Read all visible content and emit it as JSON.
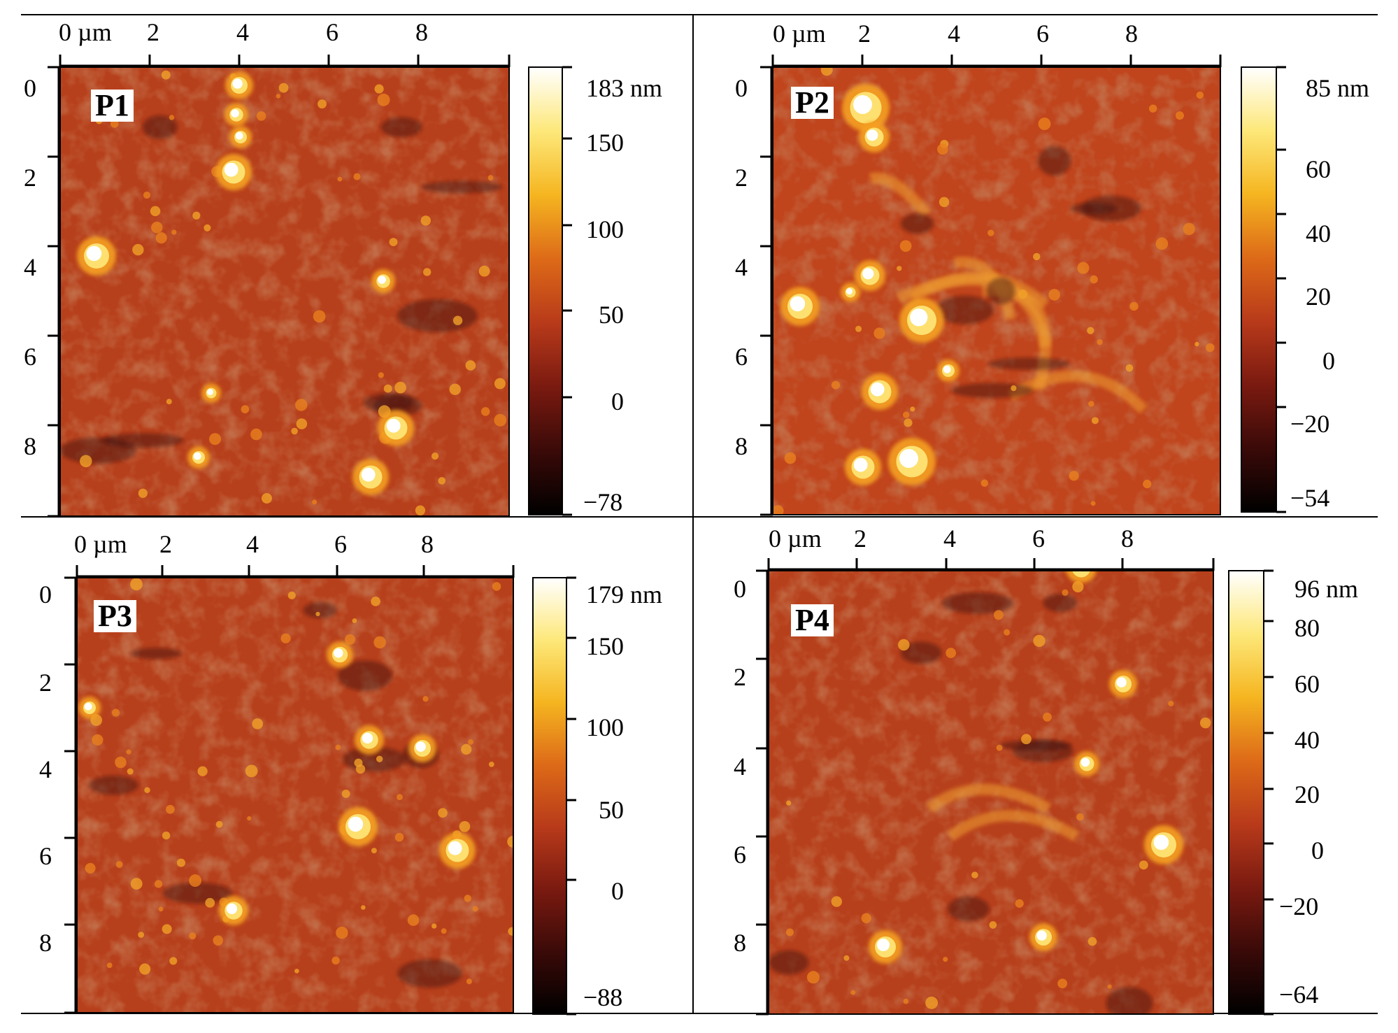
{
  "figure": {
    "panels": [
      {
        "label": "P1",
        "x_axis_label": "0 µm",
        "x_ticks": [
          "2",
          "4",
          "6",
          "8"
        ],
        "y_ticks": [
          "0",
          "2",
          "4",
          "6",
          "8"
        ],
        "colorbar_labels": [
          "183 nm",
          "150",
          "100",
          "50",
          "0",
          "−78"
        ],
        "colorbar_max": 183,
        "colorbar_min": -78
      },
      {
        "label": "P2",
        "x_axis_label": "0 µm",
        "x_ticks": [
          "2",
          "4",
          "6",
          "8"
        ],
        "y_ticks": [
          "0",
          "2",
          "4",
          "6",
          "8"
        ],
        "colorbar_labels": [
          "85 nm",
          "60",
          "40",
          "20",
          "0",
          "−20",
          "−54"
        ],
        "colorbar_max": 85,
        "colorbar_min": -54
      },
      {
        "label": "P3",
        "x_axis_label": "0 µm",
        "x_ticks": [
          "2",
          "4",
          "6",
          "8"
        ],
        "y_ticks": [
          "0",
          "2",
          "4",
          "6",
          "8"
        ],
        "colorbar_labels": [
          "179 nm",
          "150",
          "100",
          "50",
          "0",
          "−88"
        ],
        "colorbar_max": 179,
        "colorbar_min": -88
      },
      {
        "label": "P4",
        "x_axis_label": "0 µm",
        "x_ticks": [
          "2",
          "4",
          "6",
          "8"
        ],
        "y_ticks": [
          "0",
          "2",
          "4",
          "6",
          "8"
        ],
        "colorbar_labels": [
          "96 nm",
          "80",
          "60",
          "40",
          "20",
          "0",
          "−20",
          "−64"
        ],
        "colorbar_max": 96,
        "colorbar_min": -64
      }
    ],
    "colormap": [
      "#000000",
      "#3a0a08",
      "#7a1a10",
      "#b83a1a",
      "#dd6a18",
      "#f5b520",
      "#fde87a",
      "#ffffff"
    ]
  }
}
